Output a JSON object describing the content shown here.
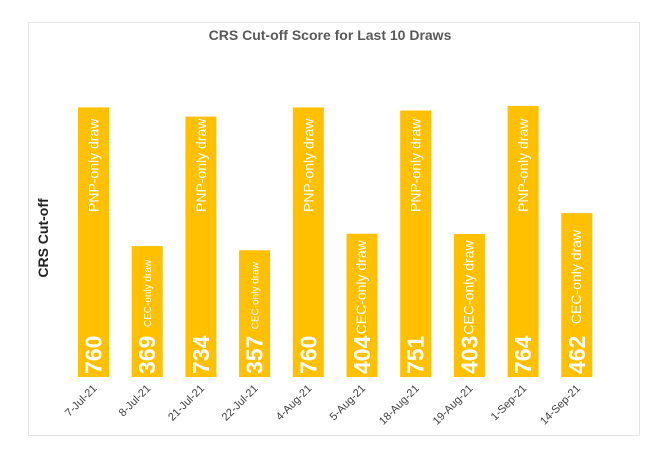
{
  "chart_data": {
    "type": "bar",
    "title": "CRS Cut-off Score for Last 10 Draws",
    "ylabel": "CRS Cut-off",
    "xlabel": "",
    "ylim": [
      0,
      800
    ],
    "grid": false,
    "categories": [
      "7-Jul-21",
      "8-Jul-21",
      "21-Jul-21",
      "22-Jul-21",
      "4-Aug-21",
      "5-Aug-21",
      "18-Aug-21",
      "19-Aug-21",
      "1-Sep-21",
      "14-Sep-21"
    ],
    "values": [
      760,
      369,
      734,
      357,
      760,
      404,
      751,
      403,
      764,
      462
    ],
    "value_labels": [
      "760",
      "369",
      "734",
      "357",
      "760",
      "404",
      "751",
      "403",
      "764",
      "462"
    ],
    "annotations": [
      "PNP-only draw",
      "CEC-only draw",
      "PNP-only draw",
      "CEC-only draw",
      "PNP-only draw",
      "CEC-only draw",
      "PNP-only draw",
      "CEC-only draw",
      "PNP-only draw",
      "CEC-only draw"
    ],
    "bar_color": "#FFC000"
  }
}
